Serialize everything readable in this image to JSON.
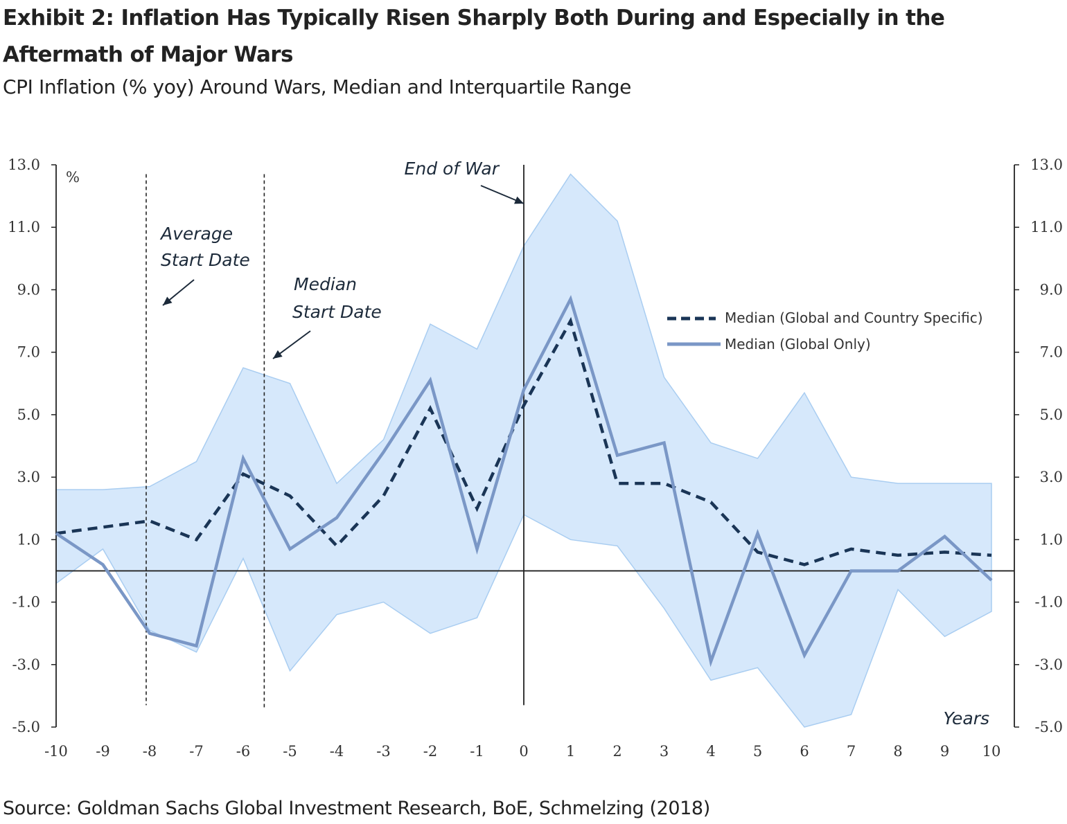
{
  "title": "Exhibit 2: Inflation Has Typically Risen Sharply Both During and Especially in the Aftermath of Major Wars",
  "subtitle": "CPI Inflation (% yoy) Around Wars, Median and Interquartile Range",
  "source": "Source: Goldman Sachs Global Investment Research, BoE, Schmelzing (2018)",
  "colors": {
    "band": "#d6e8fb",
    "band_edge": "#a9cdf1",
    "median_global_country": "#1a3556",
    "median_global_only": "#7a97c6",
    "axis": "#222222"
  },
  "chart_data": {
    "type": "line",
    "x": [
      -10,
      -9,
      -8,
      -7,
      -6,
      -5,
      -4,
      -3,
      -2,
      -1,
      0,
      1,
      2,
      3,
      4,
      5,
      6,
      7,
      8,
      9,
      10
    ],
    "x_tick_labels": [
      "-10",
      "-9",
      "-8",
      "-7",
      "-6",
      "-5",
      "-4",
      "-3",
      "-2",
      "-1",
      "0",
      "1",
      "2",
      "3",
      "4",
      "5",
      "6",
      "7",
      "8",
      "9",
      "10"
    ],
    "y_tick_labels": [
      "13.0",
      "11.0",
      "9.0",
      "7.0",
      "5.0",
      "3.0",
      "1.0",
      "-1.0",
      "-3.0",
      "-5.0"
    ],
    "y_ticks": [
      13,
      11,
      9,
      7,
      5,
      3,
      1,
      -1,
      -3,
      -5
    ],
    "ylim": [
      -5,
      13
    ],
    "xlim": [
      -10,
      10
    ],
    "ylabel": "%",
    "xlabel": "Years",
    "grid": false,
    "interquartile_range": {
      "upper": [
        2.6,
        2.6,
        2.7,
        3.5,
        6.5,
        6.0,
        2.8,
        4.2,
        7.9,
        7.1,
        10.4,
        12.7,
        11.2,
        6.2,
        4.1,
        3.6,
        5.7,
        3.0,
        2.8,
        2.8,
        2.8
      ],
      "lower": [
        -0.4,
        0.7,
        -1.9,
        -2.6,
        0.4,
        -3.2,
        -1.4,
        -1.0,
        -2.0,
        -1.5,
        1.8,
        1.0,
        0.8,
        -1.2,
        -3.5,
        -3.1,
        -5.0,
        -4.6,
        -0.6,
        -2.1,
        -1.3
      ]
    },
    "series": [
      {
        "name": "Median (Global and Country Specific)",
        "style": "dashed",
        "values": [
          1.2,
          1.4,
          1.6,
          1.0,
          3.1,
          2.4,
          0.8,
          2.4,
          5.2,
          2.0,
          5.3,
          8.0,
          2.8,
          2.8,
          2.2,
          0.6,
          0.2,
          0.7,
          0.5,
          0.6,
          0.5
        ]
      },
      {
        "name": "Median (Global Only)",
        "style": "solid",
        "values": [
          1.2,
          0.2,
          -2.0,
          -2.4,
          3.6,
          0.7,
          1.7,
          3.8,
          6.1,
          0.7,
          5.8,
          8.7,
          3.7,
          4.1,
          -2.9,
          1.2,
          -2.7,
          0.0,
          0.0,
          1.1,
          -0.3
        ]
      }
    ],
    "vertical_markers": [
      {
        "x": 0,
        "style": "solid",
        "label": "End of War"
      },
      {
        "x": -8,
        "style": "dashed",
        "label_lines": [
          "Average",
          "Start Date"
        ]
      },
      {
        "x": -5.55,
        "style": "dashed",
        "label_lines": [
          "Median",
          "Start Date"
        ]
      }
    ],
    "legend_position": "right"
  }
}
